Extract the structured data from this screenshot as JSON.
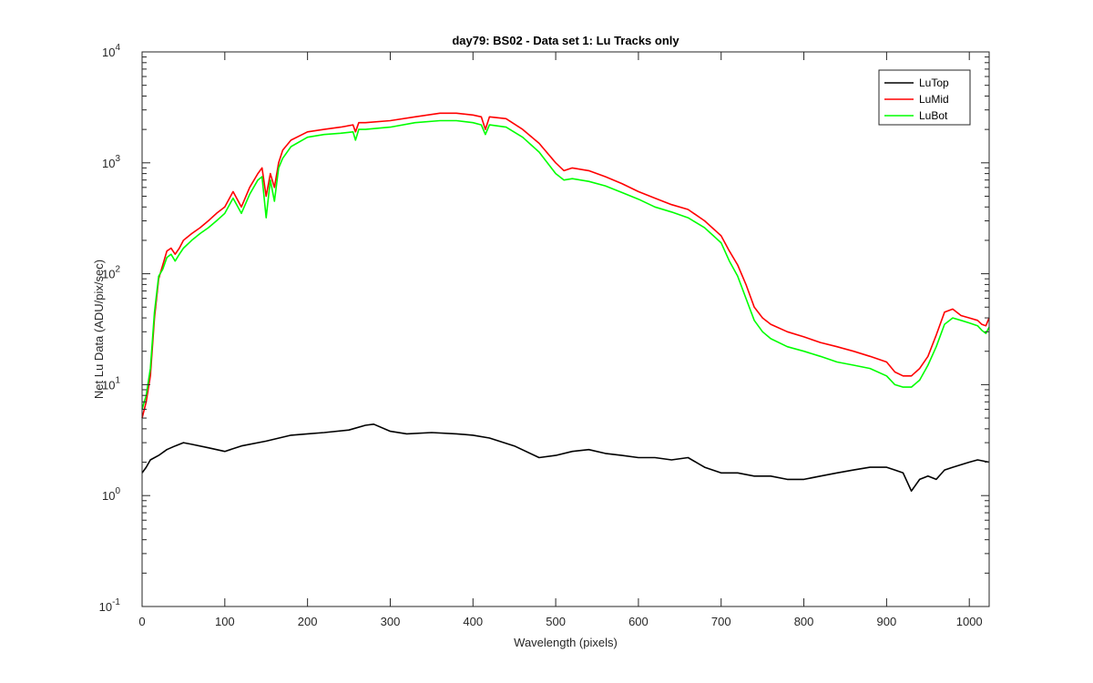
{
  "chart_data": {
    "type": "line",
    "title": "day79: BS02 - Data set 1: Lu Tracks only",
    "xlabel": "Wavelength (pixels)",
    "ylabel": "Net Lu Data (ADU/pix/sec)",
    "xlim": [
      0,
      1024
    ],
    "ylim": [
      0.1,
      10000
    ],
    "yscale": "log",
    "grid": false,
    "legend_position": "top-right",
    "x_ticks": [
      {
        "value": 0,
        "label": "0"
      },
      {
        "value": 100,
        "label": "100"
      },
      {
        "value": 200,
        "label": "200"
      },
      {
        "value": 300,
        "label": "300"
      },
      {
        "value": 400,
        "label": "400"
      },
      {
        "value": 500,
        "label": "500"
      },
      {
        "value": 600,
        "label": "600"
      },
      {
        "value": 700,
        "label": "700"
      },
      {
        "value": 800,
        "label": "800"
      },
      {
        "value": 900,
        "label": "900"
      },
      {
        "value": 1000,
        "label": "1000"
      }
    ],
    "y_ticks": [
      {
        "value": 0.1,
        "base": "10",
        "exp": "-1"
      },
      {
        "value": 1,
        "base": "10",
        "exp": "0"
      },
      {
        "value": 10,
        "base": "10",
        "exp": "1"
      },
      {
        "value": 100,
        "base": "10",
        "exp": "2"
      },
      {
        "value": 1000,
        "base": "10",
        "exp": "3"
      },
      {
        "value": 10000,
        "base": "10",
        "exp": "4"
      }
    ],
    "series": [
      {
        "name": "LuTop",
        "color": "#000000",
        "x": [
          0,
          5,
          10,
          20,
          30,
          40,
          50,
          60,
          80,
          100,
          120,
          150,
          180,
          200,
          220,
          250,
          270,
          280,
          300,
          320,
          350,
          380,
          400,
          420,
          450,
          480,
          500,
          520,
          540,
          560,
          580,
          600,
          620,
          640,
          660,
          680,
          700,
          720,
          740,
          760,
          780,
          800,
          820,
          840,
          860,
          880,
          900,
          910,
          920,
          930,
          940,
          950,
          960,
          970,
          980,
          1000,
          1010,
          1024
        ],
        "y": [
          1.6,
          1.8,
          2.1,
          2.3,
          2.6,
          2.8,
          3.0,
          2.9,
          2.7,
          2.5,
          2.8,
          3.1,
          3.5,
          3.6,
          3.7,
          3.9,
          4.3,
          4.4,
          3.8,
          3.6,
          3.7,
          3.6,
          3.5,
          3.3,
          2.8,
          2.2,
          2.3,
          2.5,
          2.6,
          2.4,
          2.3,
          2.2,
          2.2,
          2.1,
          2.2,
          1.8,
          1.6,
          1.6,
          1.5,
          1.5,
          1.4,
          1.4,
          1.5,
          1.6,
          1.7,
          1.8,
          1.8,
          1.7,
          1.6,
          1.1,
          1.4,
          1.5,
          1.4,
          1.7,
          1.8,
          2.0,
          2.1,
          2.0
        ]
      },
      {
        "name": "LuMid",
        "color": "#ff0000",
        "x": [
          0,
          5,
          10,
          15,
          20,
          25,
          30,
          35,
          40,
          45,
          50,
          60,
          70,
          80,
          90,
          100,
          110,
          120,
          130,
          140,
          145,
          150,
          155,
          160,
          165,
          170,
          180,
          200,
          220,
          240,
          255,
          258,
          262,
          270,
          300,
          330,
          360,
          380,
          400,
          410,
          415,
          420,
          440,
          460,
          480,
          500,
          510,
          520,
          540,
          560,
          580,
          600,
          620,
          640,
          660,
          680,
          700,
          710,
          720,
          730,
          740,
          750,
          760,
          780,
          800,
          820,
          840,
          860,
          880,
          900,
          910,
          920,
          930,
          940,
          950,
          960,
          970,
          980,
          990,
          1000,
          1010,
          1015,
          1020,
          1024
        ],
        "y": [
          5,
          7,
          12,
          40,
          90,
          120,
          160,
          170,
          150,
          170,
          200,
          230,
          260,
          300,
          350,
          400,
          550,
          400,
          600,
          800,
          900,
          500,
          800,
          600,
          1000,
          1300,
          1600,
          1900,
          2000,
          2100,
          2200,
          1900,
          2300,
          2300,
          2400,
          2600,
          2800,
          2800,
          2700,
          2600,
          2000,
          2600,
          2500,
          2000,
          1500,
          1000,
          850,
          900,
          850,
          750,
          650,
          550,
          480,
          420,
          380,
          300,
          220,
          160,
          120,
          80,
          50,
          40,
          35,
          30,
          27,
          24,
          22,
          20,
          18,
          16,
          13,
          12,
          12,
          14,
          18,
          28,
          45,
          48,
          42,
          40,
          38,
          35,
          34,
          40
        ]
      },
      {
        "name": "LuBot",
        "color": "#00ff00",
        "x": [
          0,
          5,
          10,
          15,
          20,
          25,
          30,
          35,
          40,
          45,
          50,
          60,
          70,
          80,
          90,
          100,
          110,
          120,
          130,
          140,
          145,
          150,
          155,
          160,
          165,
          170,
          180,
          200,
          220,
          240,
          255,
          258,
          262,
          270,
          300,
          330,
          360,
          380,
          400,
          410,
          415,
          420,
          440,
          460,
          480,
          500,
          510,
          520,
          540,
          560,
          580,
          600,
          620,
          640,
          660,
          680,
          700,
          710,
          720,
          730,
          740,
          750,
          760,
          780,
          800,
          820,
          840,
          860,
          880,
          900,
          910,
          920,
          930,
          940,
          950,
          960,
          970,
          980,
          990,
          1000,
          1010,
          1015,
          1020,
          1024
        ],
        "y": [
          6,
          8,
          14,
          45,
          95,
          110,
          140,
          150,
          130,
          150,
          170,
          200,
          230,
          260,
          300,
          350,
          480,
          350,
          520,
          700,
          750,
          320,
          700,
          450,
          900,
          1100,
          1400,
          1700,
          1800,
          1850,
          1900,
          1600,
          2000,
          2000,
          2100,
          2300,
          2400,
          2400,
          2300,
          2200,
          1800,
          2200,
          2100,
          1700,
          1250,
          800,
          700,
          720,
          680,
          620,
          540,
          470,
          400,
          360,
          320,
          260,
          190,
          130,
          95,
          60,
          38,
          30,
          26,
          22,
          20,
          18,
          16,
          15,
          14,
          12,
          10,
          9.5,
          9.5,
          11,
          15,
          22,
          35,
          40,
          38,
          36,
          34,
          31,
          29,
          33
        ]
      }
    ]
  }
}
